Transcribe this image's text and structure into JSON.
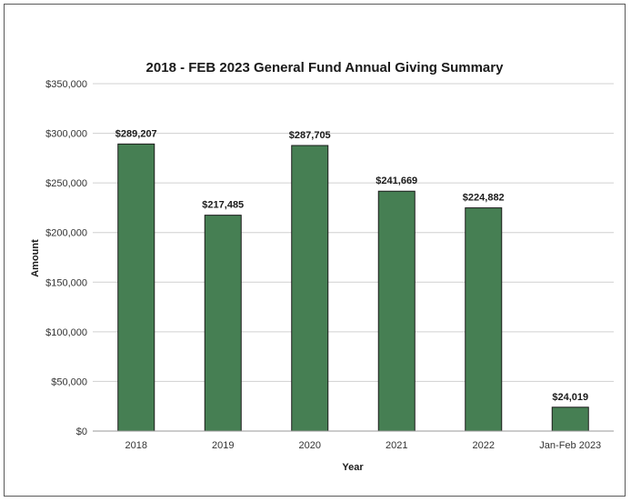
{
  "chart_data": {
    "type": "bar",
    "title": "2018 - FEB 2023 General Fund Annual Giving Summary",
    "xlabel": "Year",
    "ylabel": "Amount",
    "categories": [
      "2018",
      "2019",
      "2020",
      "2021",
      "2022",
      "Jan-Feb 2023"
    ],
    "values": [
      289207,
      217485,
      287705,
      241669,
      224882,
      24019
    ],
    "data_labels": [
      "$289,207",
      "$217,485",
      "$287,705",
      "$241,669",
      "$224,882",
      "$24,019"
    ],
    "ylim": [
      0,
      350000
    ],
    "yticks": [
      0,
      50000,
      100000,
      150000,
      200000,
      250000,
      300000,
      350000
    ],
    "ytick_labels": [
      "$0",
      "$50,000",
      "$100,000",
      "$150,000",
      "$200,000",
      "$250,000",
      "$300,000",
      "$350,000"
    ],
    "grid": true,
    "legend": "none",
    "colors": {
      "bar_fill": "#467f53",
      "bar_stroke": "#1b1b1b",
      "gridline": "#d0d0d0",
      "axis": "#9a9a9a"
    }
  }
}
